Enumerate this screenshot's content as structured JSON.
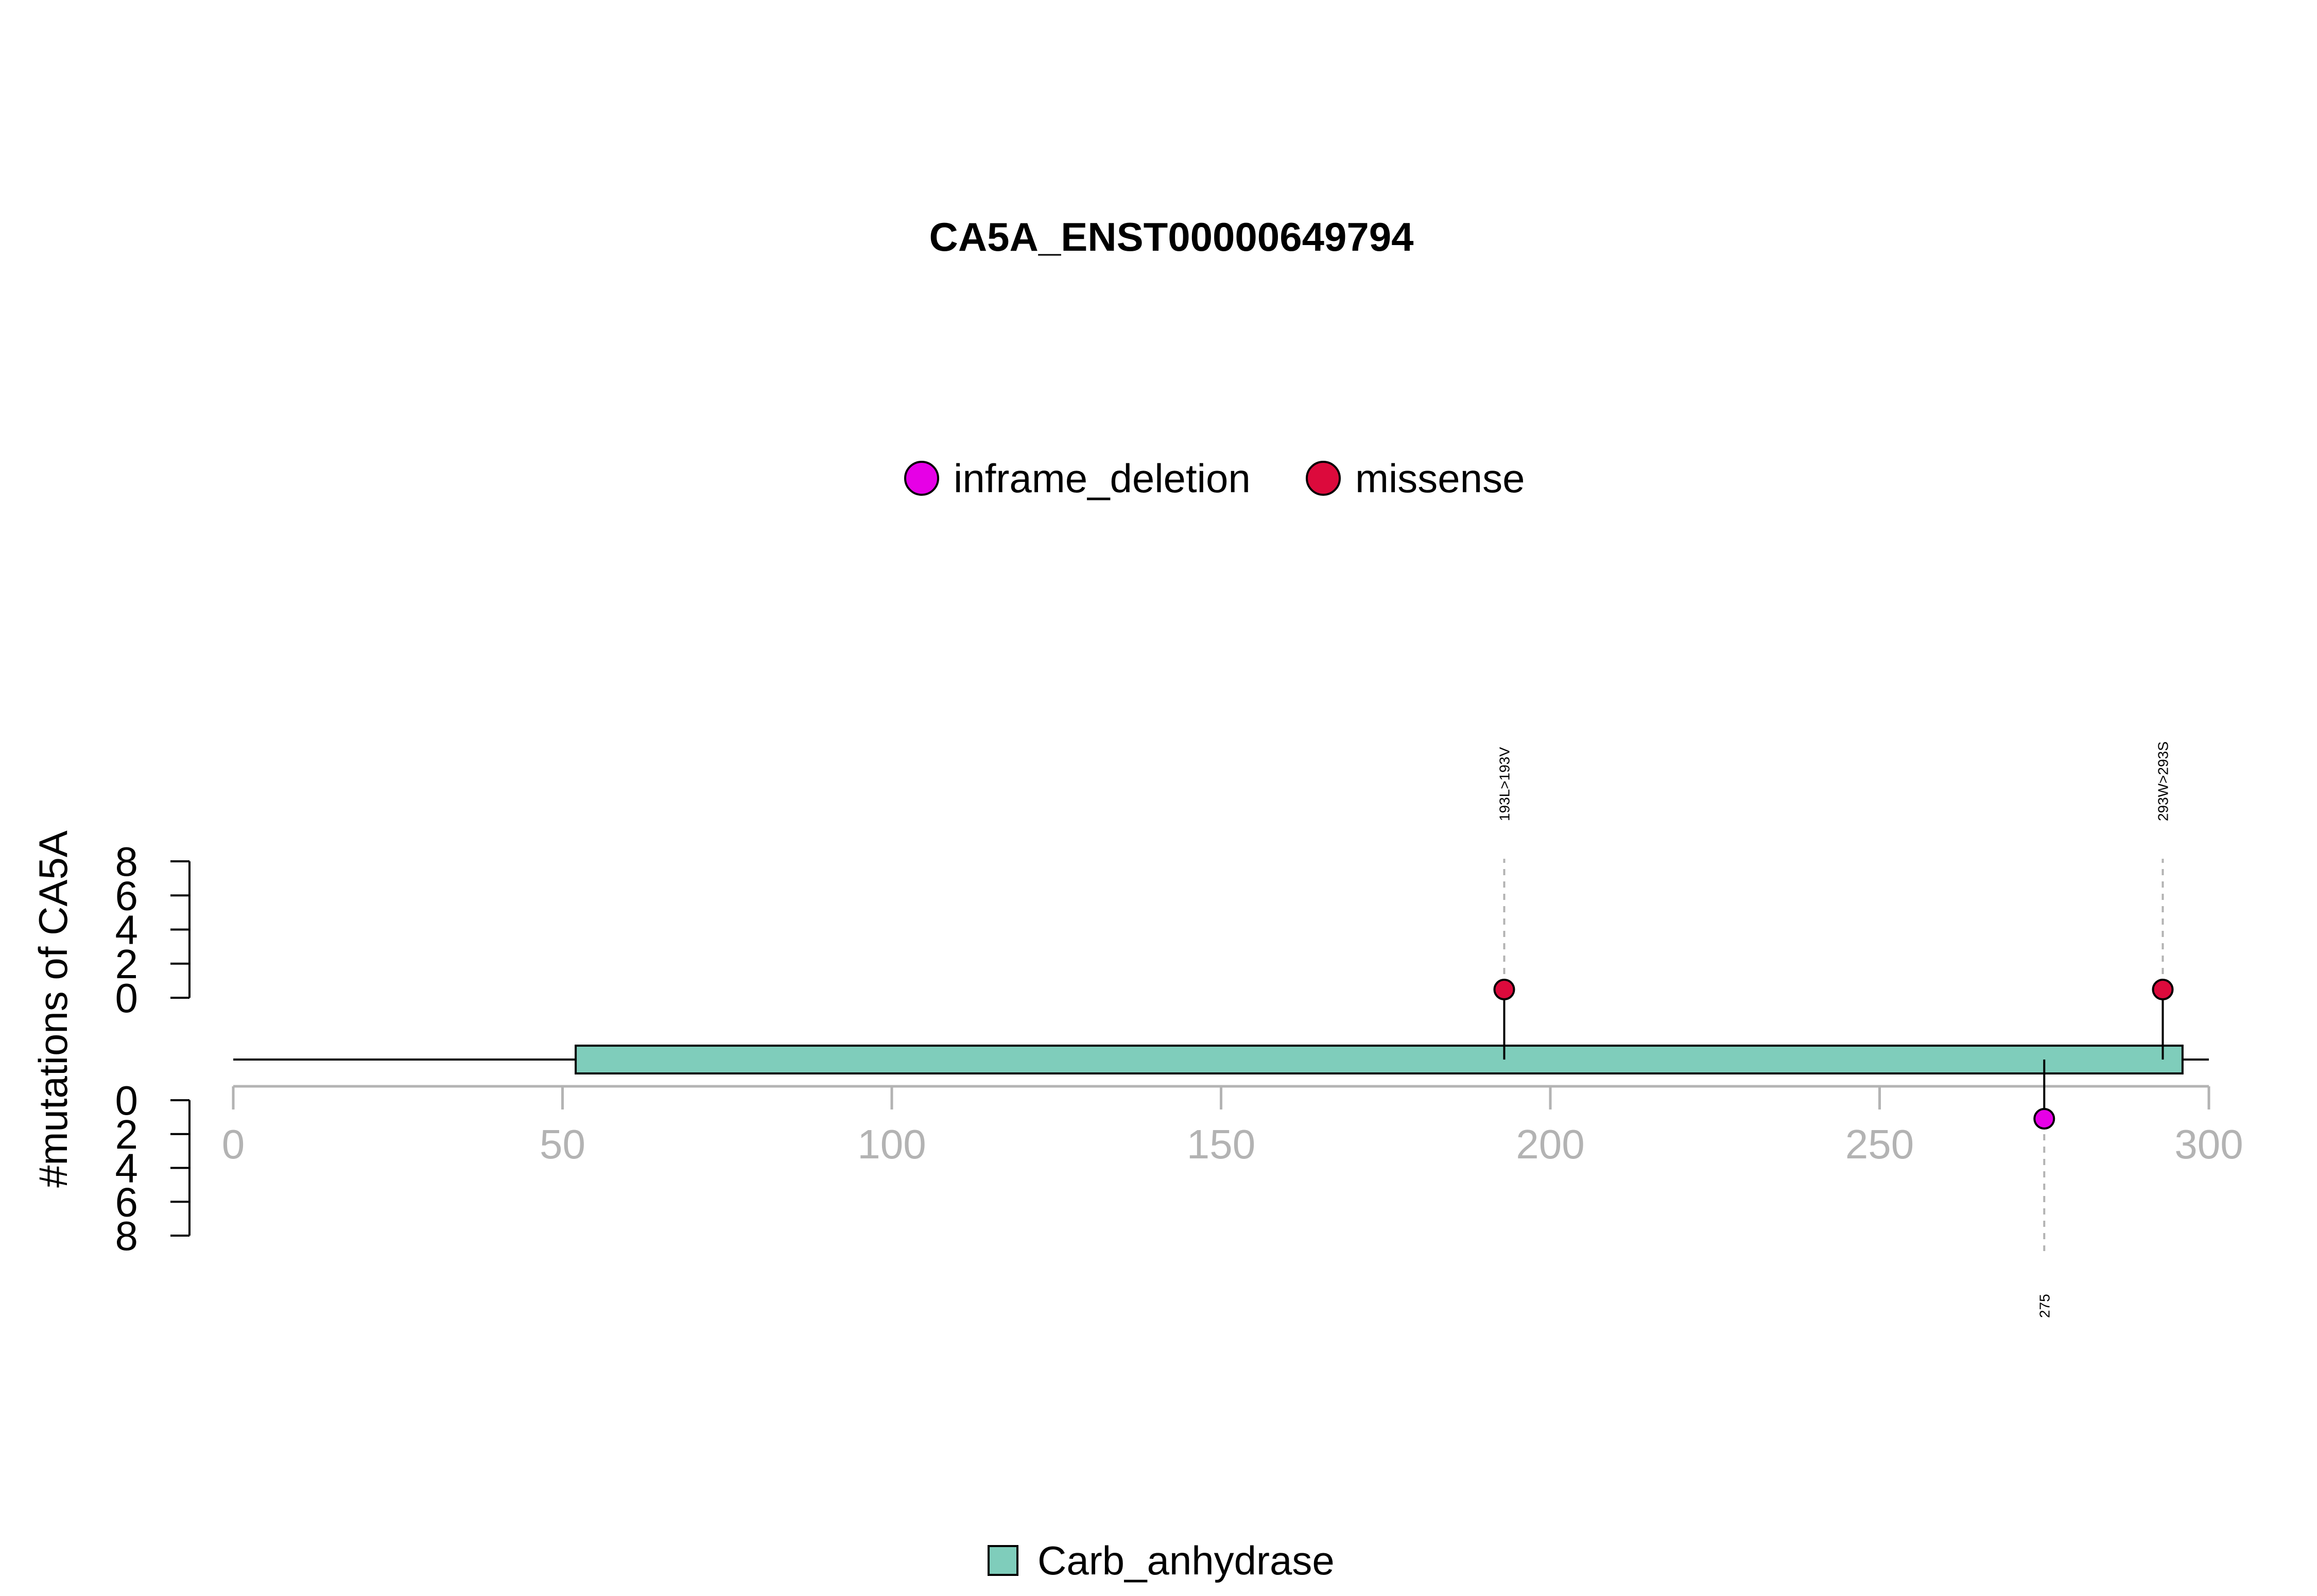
{
  "chart_data": {
    "type": "lollipop",
    "title": "CA5A_ENST00000649794",
    "ylabel": "#mutations of CA5A",
    "x_ticks": [
      0,
      50,
      100,
      150,
      200,
      250,
      300
    ],
    "xlim": [
      0,
      300
    ],
    "y_ticks": [
      0,
      2,
      4,
      6,
      8
    ],
    "ylim": [
      0,
      8
    ],
    "legend": [
      {
        "name": "inframe_deletion",
        "color": "#e600e6"
      },
      {
        "name": "missense",
        "color": "#dc0a3c"
      }
    ],
    "protein": {
      "start": 0,
      "end": 300
    },
    "domains": [
      {
        "name": "Carb_anhydrase",
        "start": 52,
        "end": 296,
        "color": "#7fcdbb"
      }
    ],
    "mutations": [
      {
        "position": 193,
        "label": "193L>193V",
        "type": "missense",
        "side": "top",
        "count": 1
      },
      {
        "position": 293,
        "label": "293W>293S",
        "type": "missense",
        "side": "top",
        "count": 1
      },
      {
        "position": 275,
        "label": "275",
        "type": "inframe_deletion",
        "side": "bottom",
        "count": 1
      }
    ]
  }
}
